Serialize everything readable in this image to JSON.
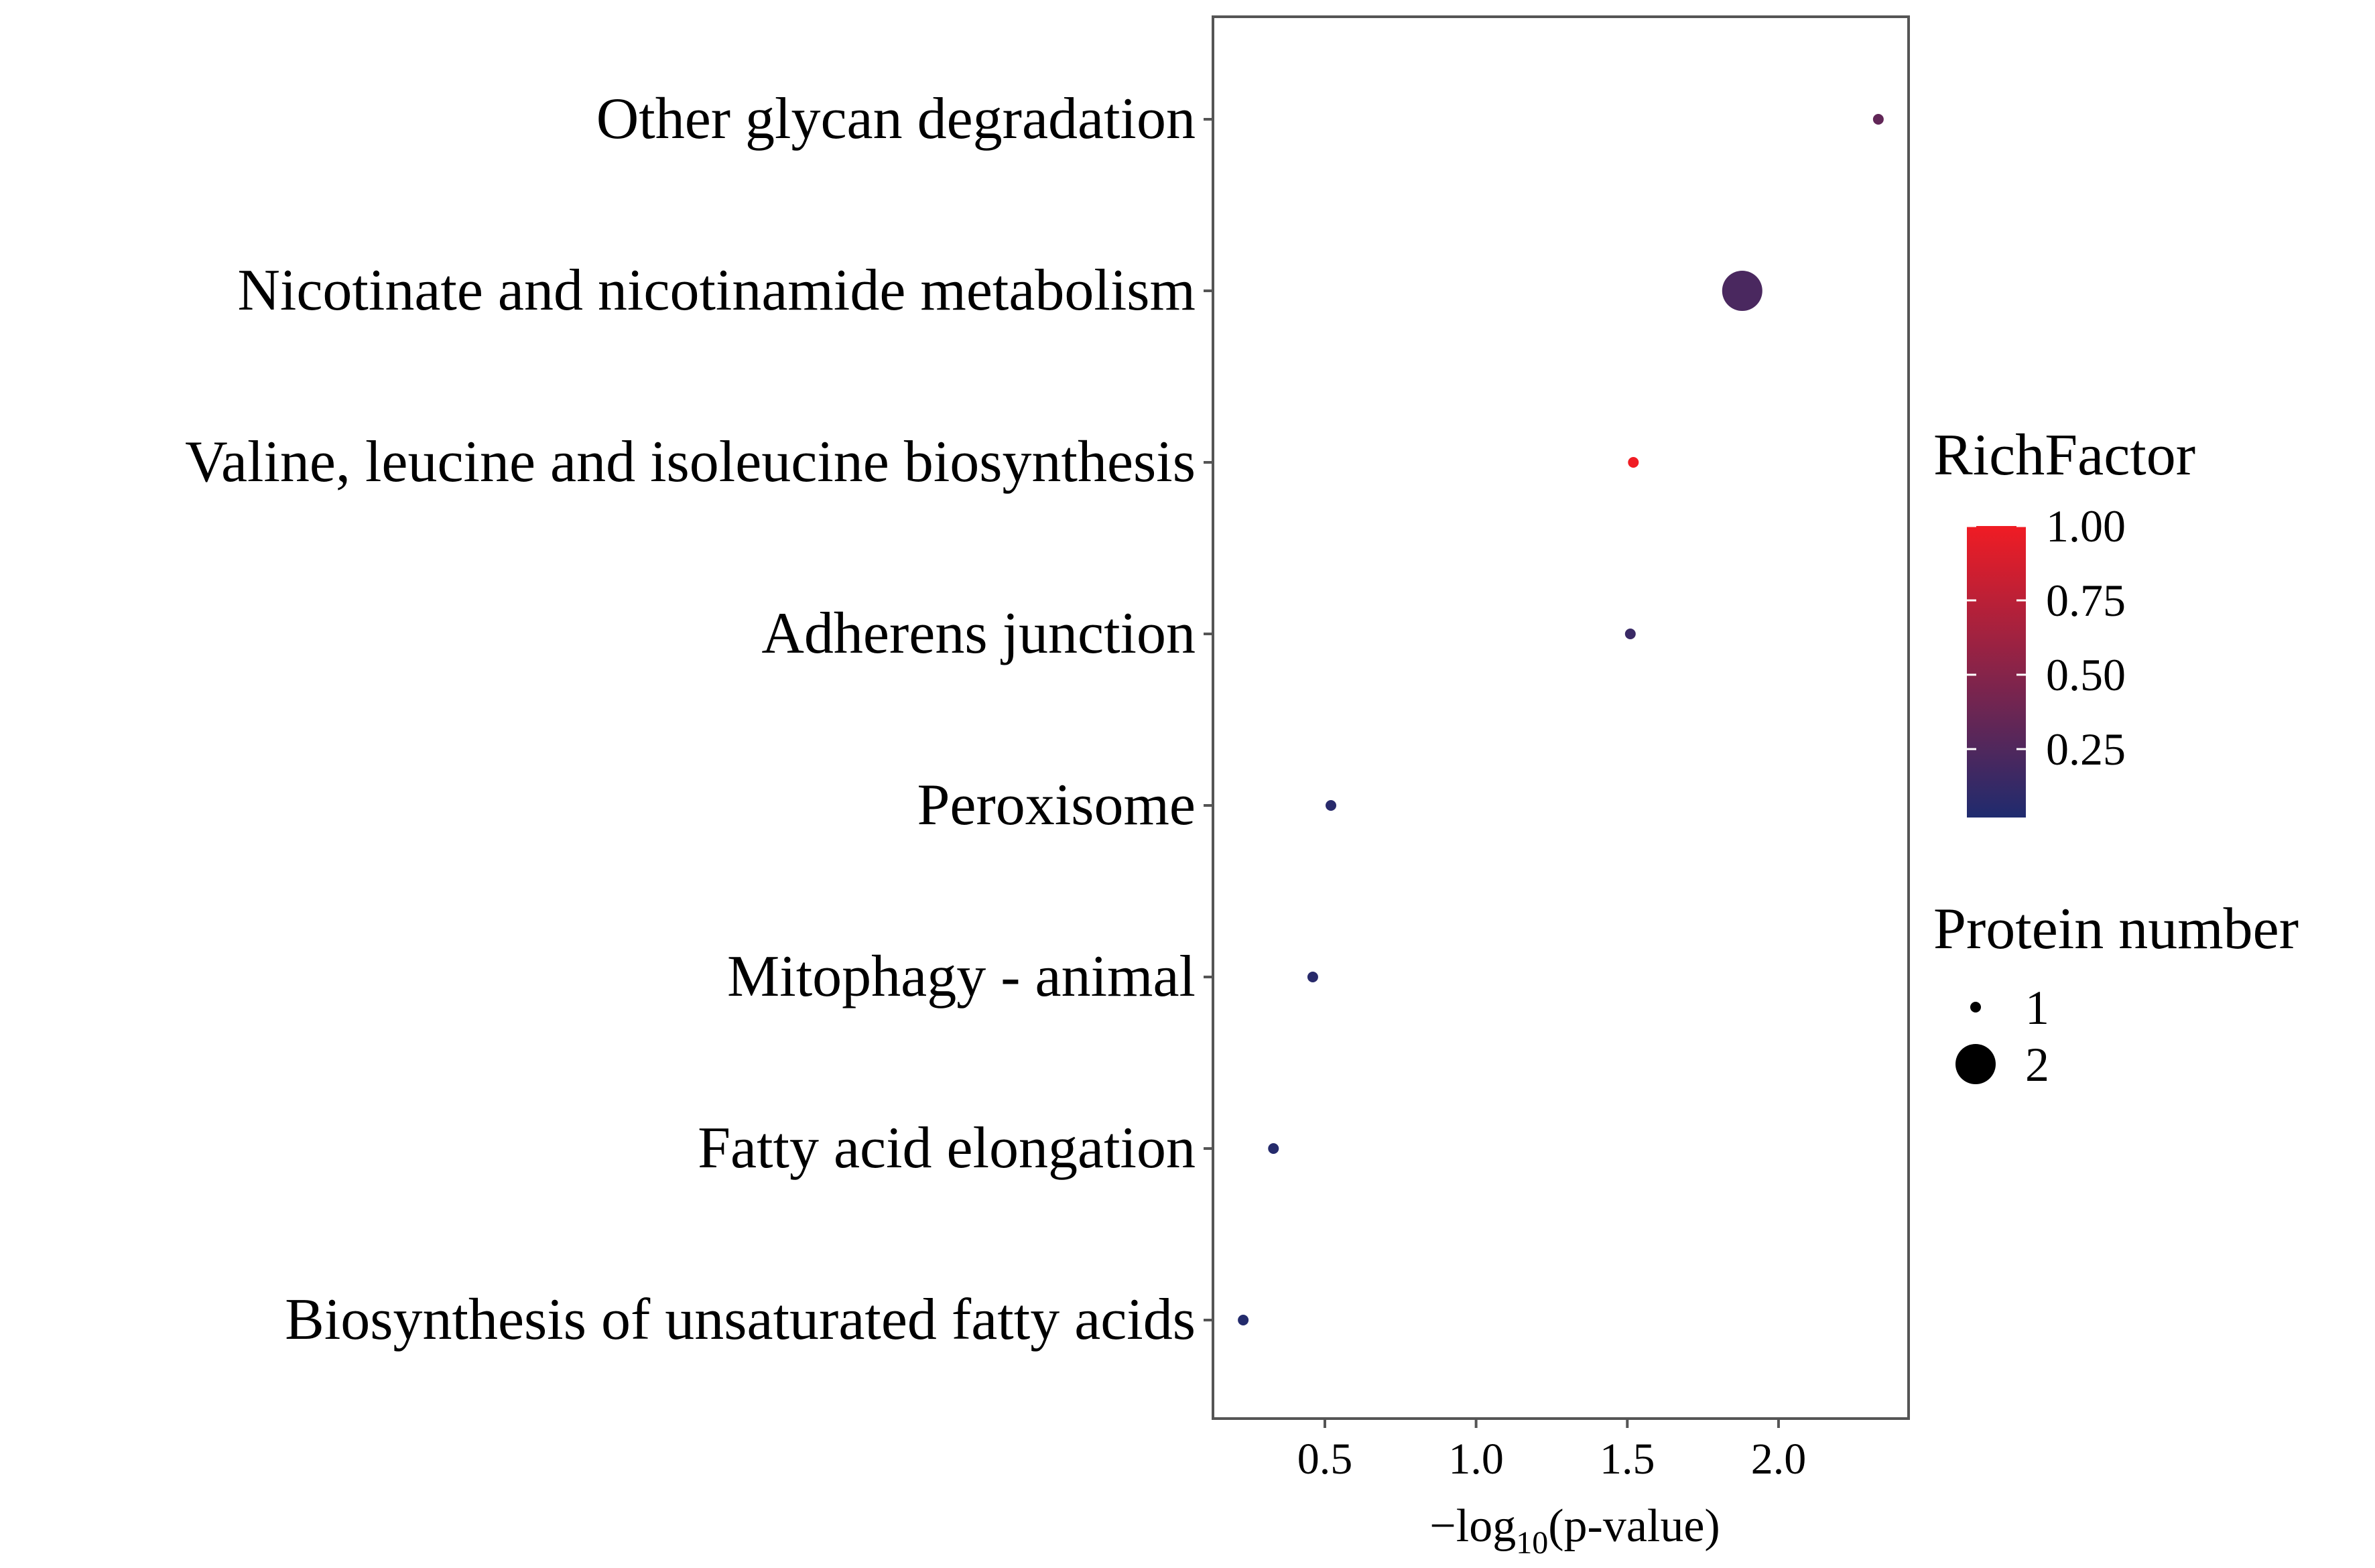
{
  "chart_data": {
    "type": "scatter",
    "title": "",
    "xlabel": "−log10(p-value)",
    "xlabel_parts": {
      "prefix": "−log",
      "subscript": "10",
      "suffix": "(p-value)"
    },
    "ylabel": "",
    "xlim": [
      0.13,
      2.43
    ],
    "xticks": [
      0.5,
      1.0,
      1.5,
      2.0
    ],
    "xtick_labels": [
      "0.5",
      "1.0",
      "1.5",
      "2.0"
    ],
    "grid": false,
    "categories": [
      "Other glycan degradation",
      "Nicotinate and nicotinamide metabolism",
      "Valine, leucine and isoleucine biosynthesis",
      "Adherens junction",
      "Peroxisome",
      "Mitophagy - animal",
      "Fatty acid elongation",
      "Biosynthesis of unsaturated fatty acids"
    ],
    "points": [
      {
        "category": "Other glycan degradation",
        "x": 2.33,
        "rich_factor": 0.33,
        "protein_number": 1
      },
      {
        "category": "Nicotinate and nicotinamide metabolism",
        "x": 1.88,
        "rich_factor": 0.22,
        "protein_number": 2
      },
      {
        "category": "Valine, leucine and isoleucine biosynthesis",
        "x": 1.52,
        "rich_factor": 1.0,
        "protein_number": 1
      },
      {
        "category": "Adherens junction",
        "x": 1.51,
        "rich_factor": 0.14,
        "protein_number": 1
      },
      {
        "category": "Peroxisome",
        "x": 0.52,
        "rich_factor": 0.06,
        "protein_number": 1
      },
      {
        "category": "Mitophagy - animal",
        "x": 0.46,
        "rich_factor": 0.06,
        "protein_number": 1
      },
      {
        "category": "Fatty acid elongation",
        "x": 0.33,
        "rich_factor": 0.05,
        "protein_number": 1
      },
      {
        "category": "Biosynthesis of unsaturated fatty acids",
        "x": 0.23,
        "rich_factor": 0.04,
        "protein_number": 1
      }
    ],
    "color_legend": {
      "title": "RichFactor",
      "range": [
        0.02,
        1.0
      ],
      "ticks": [
        0.25,
        0.5,
        0.75,
        1.0
      ],
      "tick_labels": [
        "0.25",
        "0.50",
        "0.75",
        "1.00"
      ],
      "low_color": "#1f2b6e",
      "high_color": "#f01c24",
      "placement": "right"
    },
    "size_legend": {
      "title": "Protein number",
      "values": [
        1,
        2
      ],
      "labels": [
        "1",
        "2"
      ],
      "placement": "right"
    }
  }
}
